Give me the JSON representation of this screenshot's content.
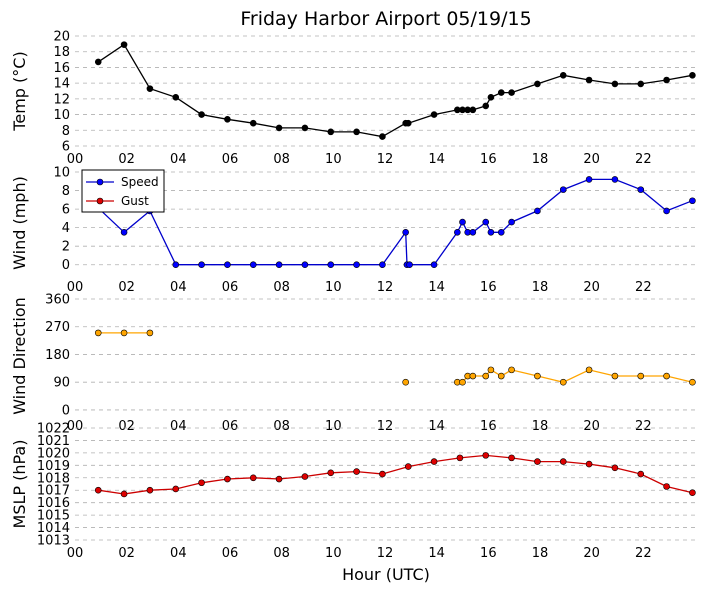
{
  "title": "Friday Harbor Airport 05/19/15",
  "xlabel": "Hour (UTC)",
  "x_tick_labels": [
    "00",
    "02",
    "04",
    "06",
    "08",
    "10",
    "12",
    "14",
    "16",
    "18",
    "20",
    "22"
  ],
  "chart_data": [
    {
      "type": "line",
      "ylabel": "Temp (°C)",
      "xlim": [
        0,
        24
      ],
      "ylim": [
        6,
        20
      ],
      "yticks": [
        6,
        8,
        10,
        12,
        14,
        16,
        18,
        20
      ],
      "grid": true,
      "series": [
        {
          "color": "#000000",
          "x": [
            0.9,
            1.9,
            2.9,
            3.9,
            4.9,
            5.9,
            6.9,
            7.9,
            8.9,
            9.9,
            10.9,
            11.9,
            12.8,
            12.9,
            13.9,
            14.8,
            15.0,
            15.2,
            15.4,
            15.9,
            16.1,
            16.5,
            16.9,
            17.9,
            18.9,
            19.9,
            20.9,
            21.9,
            22.9,
            23.9
          ],
          "values": [
            16.7,
            18.9,
            13.3,
            12.2,
            10.0,
            9.4,
            8.9,
            8.3,
            8.3,
            7.8,
            7.8,
            7.2,
            8.9,
            8.9,
            10.0,
            10.6,
            10.6,
            10.6,
            10.6,
            11.1,
            12.2,
            12.8,
            12.8,
            13.9,
            15.0,
            14.4,
            13.9,
            13.9,
            14.4,
            15.0
          ]
        }
      ]
    },
    {
      "type": "line",
      "ylabel": "Wind (mph)",
      "xlim": [
        0,
        24
      ],
      "ylim": [
        -1,
        10
      ],
      "yticks": [
        0,
        2,
        4,
        6,
        8,
        10
      ],
      "grid": true,
      "legend": "top-left",
      "series": [
        {
          "name": "Speed",
          "color": "#0000cc",
          "marker_color": "#0000ff",
          "x": [
            0.6,
            1.9,
            2.9,
            3.9,
            4.9,
            5.9,
            6.9,
            7.9,
            8.9,
            9.9,
            10.9,
            11.9,
            12.8,
            12.85,
            12.95,
            13.9,
            14.8,
            15.0,
            15.2,
            15.4,
            15.9,
            16.1,
            16.5,
            16.9,
            17.9,
            18.9,
            19.9,
            20.9,
            21.9,
            22.9,
            23.9
          ],
          "values": [
            6.9,
            3.5,
            5.8,
            0,
            0,
            0,
            0,
            0,
            0,
            0,
            0,
            0,
            3.5,
            0,
            0,
            0,
            3.5,
            4.6,
            3.5,
            3.5,
            4.6,
            3.5,
            3.5,
            4.6,
            5.8,
            8.1,
            9.2,
            9.2,
            8.1,
            5.8,
            6.9
          ]
        },
        {
          "name": "Gust",
          "color": "#cc0000",
          "marker_color": "#dd0000",
          "x": [],
          "values": []
        }
      ]
    },
    {
      "type": "scatter",
      "ylabel": "Wind Direction",
      "xlim": [
        0,
        24
      ],
      "ylim": [
        -10,
        360
      ],
      "yticks": [
        0,
        90,
        180,
        270,
        360
      ],
      "grid": true,
      "series": [
        {
          "color": "#ffa500",
          "marker_color": "#ffa500",
          "segments": [
            {
              "x": [
                0.9,
                1.9,
                2.9
              ],
              "values": [
                250,
                250,
                250
              ]
            },
            {
              "x": [
                12.8
              ],
              "values": [
                90
              ]
            },
            {
              "x": [
                14.8,
                15.0,
                15.2,
                15.4,
                15.9,
                16.1,
                16.5,
                16.9,
                17.9,
                18.9,
                19.9,
                20.9,
                21.9,
                22.9,
                23.9
              ],
              "values": [
                90,
                90,
                110,
                110,
                110,
                130,
                110,
                130,
                110,
                90,
                130,
                110,
                110,
                110,
                90
              ]
            }
          ]
        }
      ]
    },
    {
      "type": "line",
      "ylabel": "MSLP (hPa)",
      "xlim": [
        0,
        24
      ],
      "ylim": [
        1013,
        1022
      ],
      "yticks": [
        1013,
        1014,
        1015,
        1016,
        1017,
        1018,
        1019,
        1020,
        1021,
        1022
      ],
      "grid": true,
      "series": [
        {
          "color": "#cc0000",
          "marker_color": "#dd0000",
          "x": [
            0.9,
            1.9,
            2.9,
            3.9,
            4.9,
            5.9,
            6.9,
            7.9,
            8.9,
            9.9,
            10.9,
            11.9,
            12.9,
            13.9,
            14.9,
            15.9,
            16.9,
            17.9,
            18.9,
            19.9,
            20.9,
            21.9,
            22.9,
            23.9
          ],
          "values": [
            1017.0,
            1016.7,
            1017.0,
            1017.1,
            1017.6,
            1017.9,
            1018.0,
            1017.9,
            1018.1,
            1018.4,
            1018.5,
            1018.3,
            1018.9,
            1019.3,
            1019.6,
            1019.8,
            1019.6,
            1019.3,
            1019.3,
            1019.1,
            1018.8,
            1018.3,
            1017.3,
            1016.8
          ]
        }
      ]
    }
  ]
}
